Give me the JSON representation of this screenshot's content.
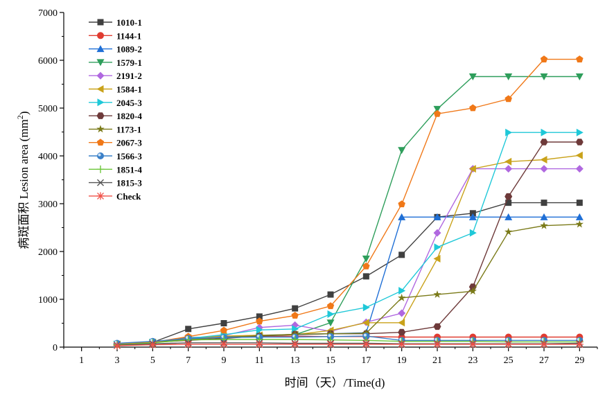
{
  "chart_data": {
    "type": "line",
    "xlabel": "时间（天）/Time(d)",
    "ylabel_main": "病斑面积 Lesion area (mm",
    "ylabel_sup": "2",
    "ylabel_end": ")",
    "xlim": [
      0,
      30
    ],
    "ylim": [
      0,
      7000
    ],
    "x_ticks": [
      1,
      3,
      5,
      7,
      9,
      11,
      13,
      15,
      17,
      19,
      21,
      23,
      25,
      27,
      29
    ],
    "y_ticks": [
      0,
      1000,
      2000,
      3000,
      4000,
      5000,
      6000,
      7000
    ],
    "legend_position": "top-left",
    "grid": false,
    "x": [
      3,
      5,
      7,
      9,
      11,
      13,
      15,
      17,
      19,
      21,
      23,
      25,
      27,
      29
    ],
    "series": [
      {
        "name": "1010-1",
        "color": "#404040",
        "marker": "square",
        "values": [
          60,
          100,
          380,
          500,
          640,
          810,
          1100,
          1480,
          1930,
          2720,
          2800,
          3020,
          3020,
          3020
        ]
      },
      {
        "name": "1144-1",
        "color": "#e03c31",
        "marker": "circle",
        "values": [
          60,
          100,
          180,
          200,
          220,
          230,
          220,
          220,
          210,
          210,
          210,
          210,
          210,
          210
        ]
      },
      {
        "name": "1089-2",
        "color": "#1f6fd6",
        "marker": "triangle-up",
        "values": [
          60,
          100,
          200,
          220,
          250,
          260,
          280,
          300,
          2720,
          2720,
          2720,
          2720,
          2720,
          2720
        ]
      },
      {
        "name": "1579-1",
        "color": "#2e9e5b",
        "marker": "triangle-down",
        "values": [
          60,
          100,
          160,
          200,
          230,
          260,
          510,
          1850,
          4120,
          4980,
          5660,
          5660,
          5660,
          5660
        ]
      },
      {
        "name": "2191-2",
        "color": "#b068e0",
        "marker": "diamond",
        "values": [
          60,
          100,
          180,
          240,
          410,
          460,
          330,
          520,
          710,
          2390,
          3730,
          3730,
          3730,
          3730
        ]
      },
      {
        "name": "1584-1",
        "color": "#c9a21a",
        "marker": "triangle-left",
        "values": [
          60,
          100,
          190,
          230,
          250,
          260,
          350,
          510,
          510,
          1850,
          3730,
          3880,
          3920,
          4010
        ]
      },
      {
        "name": "2045-3",
        "color": "#1fc8d8",
        "marker": "triangle-right",
        "values": [
          60,
          100,
          180,
          260,
          360,
          380,
          690,
          830,
          1180,
          2090,
          2390,
          4490,
          4490,
          4490
        ]
      },
      {
        "name": "1820-4",
        "color": "#6e3a3a",
        "marker": "hexagon",
        "values": [
          60,
          100,
          140,
          180,
          230,
          270,
          280,
          280,
          310,
          430,
          1260,
          3150,
          4290,
          4290
        ]
      },
      {
        "name": "1173-1",
        "color": "#7a7a18",
        "marker": "star",
        "values": [
          60,
          100,
          160,
          200,
          240,
          270,
          280,
          290,
          1030,
          1100,
          1170,
          2410,
          2540,
          2570
        ]
      },
      {
        "name": "2067-3",
        "color": "#f07818",
        "marker": "pentagon",
        "values": [
          60,
          100,
          220,
          350,
          540,
          660,
          860,
          1690,
          2990,
          4880,
          5000,
          5190,
          6020,
          6020
        ]
      },
      {
        "name": "1566-3",
        "color": "#3a80c8",
        "marker": "sphere",
        "values": [
          80,
          120,
          180,
          200,
          210,
          210,
          220,
          230,
          140,
          140,
          140,
          140,
          140,
          140
        ]
      },
      {
        "name": "1851-4",
        "color": "#6cc63a",
        "marker": "plus",
        "values": [
          50,
          90,
          150,
          160,
          160,
          160,
          150,
          140,
          120,
          120,
          120,
          110,
          110,
          110
        ]
      },
      {
        "name": "1815-3",
        "color": "#555555",
        "marker": "x",
        "values": [
          40,
          70,
          90,
          90,
          90,
          80,
          80,
          80,
          70,
          70,
          70,
          70,
          70,
          80
        ]
      },
      {
        "name": "Check",
        "color": "#f05048",
        "marker": "asterisk",
        "values": [
          30,
          50,
          60,
          60,
          60,
          60,
          60,
          60,
          60,
          60,
          60,
          60,
          60,
          60
        ]
      }
    ]
  }
}
